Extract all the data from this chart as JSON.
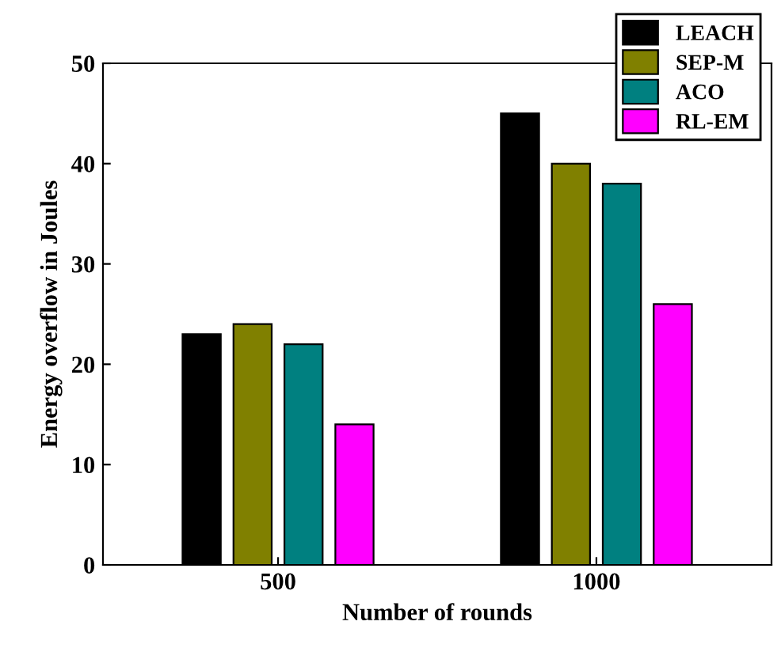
{
  "chart_data": {
    "type": "bar",
    "xlabel": "Number of rounds",
    "ylabel": "Energy overflow in Joules",
    "categories": [
      "500",
      "1000"
    ],
    "series": [
      {
        "name": "LEACH",
        "color": "#000000",
        "values": [
          23,
          45
        ]
      },
      {
        "name": "SEP-M",
        "color": "#808000",
        "values": [
          24,
          40
        ]
      },
      {
        "name": "ACO",
        "color": "#008080",
        "values": [
          22,
          38
        ]
      },
      {
        "name": "RL-EM",
        "color": "#ff00ff",
        "values": [
          14,
          26
        ]
      }
    ],
    "ylim": [
      0,
      50
    ],
    "yticks": [
      0,
      10,
      20,
      30,
      40,
      50
    ],
    "grid": false,
    "legend": "top right"
  }
}
